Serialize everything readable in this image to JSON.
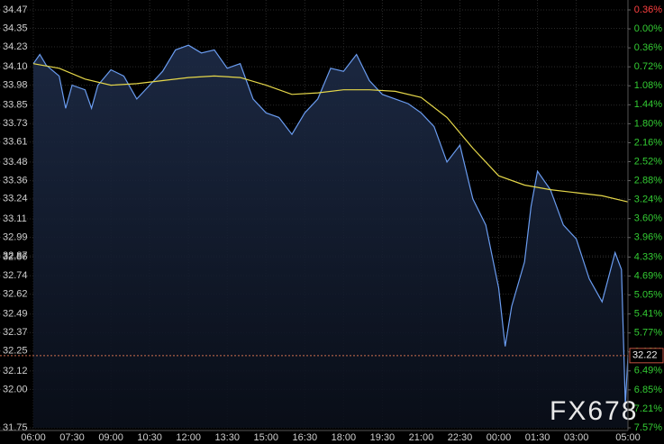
{
  "chart_data": {
    "type": "line",
    "background": "#000000",
    "grid": true,
    "xlim": [
      0,
      23
    ],
    "xticks": [
      {
        "value": 0,
        "label": "06:00"
      },
      {
        "value": 1.5,
        "label": "07:30"
      },
      {
        "value": 3,
        "label": "09:00"
      },
      {
        "value": 4.5,
        "label": "10:30"
      },
      {
        "value": 6,
        "label": "12:00"
      },
      {
        "value": 7.5,
        "label": "13:30"
      },
      {
        "value": 9,
        "label": "15:00"
      },
      {
        "value": 10.5,
        "label": "16:30"
      },
      {
        "value": 12,
        "label": "18:00"
      },
      {
        "value": 13.5,
        "label": "19:30"
      },
      {
        "value": 15,
        "label": "21:00"
      },
      {
        "value": 16.5,
        "label": "22:30"
      },
      {
        "value": 18,
        "label": "00:00"
      },
      {
        "value": 19.5,
        "label": "01:30"
      },
      {
        "value": 21,
        "label": "03:00"
      },
      {
        "value": 23,
        "label": "05:00"
      }
    ],
    "ylim": [
      31.75,
      34.47
    ],
    "yticks": [
      34.47,
      34.35,
      34.23,
      {
        "value": 34.1,
        "label": "34.10"
      },
      33.98,
      33.85,
      33.73,
      33.61,
      33.48,
      33.36,
      33.24,
      33.11,
      32.99,
      32.86,
      32.74,
      32.62,
      32.49,
      32.37,
      32.25,
      32.12,
      {
        "value": 32.0,
        "label": "32.00"
      },
      32.87,
      31.75
    ],
    "y2lim": [
      -7.57,
      0.36
    ],
    "y2ticks": [
      {
        "value": 0.36,
        "label": "0.36%"
      },
      {
        "value": 0.0,
        "label": "0.00%"
      },
      {
        "value": -0.36,
        "label": "0.36%"
      },
      {
        "value": -0.72,
        "label": "0.72%"
      },
      {
        "value": -1.08,
        "label": "1.08%"
      },
      {
        "value": -1.44,
        "label": "1.44%"
      },
      {
        "value": -1.8,
        "label": "1.80%"
      },
      {
        "value": -2.16,
        "label": "2.16%"
      },
      {
        "value": -2.52,
        "label": "2.52%"
      },
      {
        "value": -2.88,
        "label": "2.88%"
      },
      {
        "value": -3.24,
        "label": "3.24%"
      },
      {
        "value": -3.6,
        "label": "3.60%"
      },
      {
        "value": -3.96,
        "label": "3.96%"
      },
      {
        "value": -4.33,
        "label": "4.33%"
      },
      {
        "value": -4.69,
        "label": "4.69%"
      },
      {
        "value": -5.05,
        "label": "5.05%"
      },
      {
        "value": -5.41,
        "label": "5.41%"
      },
      {
        "value": -5.77,
        "label": "5.77%"
      },
      {
        "value": -6.13,
        "label": "6.13%"
      },
      {
        "value": -6.49,
        "label": "6.49%"
      },
      {
        "value": -6.85,
        "label": "6.85%"
      },
      {
        "value": -7.21,
        "label": "7.21%"
      },
      {
        "value": -7.57,
        "label": "7.57%"
      }
    ],
    "y2_up_color": "#ff4040",
    "y2_down_color": "#33cc33",
    "series": [
      {
        "color": "#6a9cf0",
        "area": true,
        "x": [
          0,
          0.25,
          0.5,
          1,
          1.25,
          1.5,
          2,
          2.25,
          2.5,
          3,
          3.5,
          4,
          4.5,
          5,
          5.5,
          6,
          6.5,
          7,
          7.5,
          8,
          8.5,
          9,
          9.5,
          10,
          10.5,
          11,
          11.5,
          12,
          12.5,
          13,
          13.5,
          14,
          14.5,
          15,
          15.5,
          16,
          16.5,
          17,
          17.5,
          18,
          18.25,
          18.5,
          19,
          19.25,
          19.5,
          20,
          20.5,
          21,
          21.5,
          22,
          22.5,
          22.75,
          22.9,
          23
        ],
        "values": [
          34.12,
          34.18,
          34.11,
          34.04,
          33.83,
          33.98,
          33.95,
          33.83,
          33.98,
          34.08,
          34.04,
          33.89,
          33.98,
          34.07,
          34.21,
          34.24,
          34.19,
          34.21,
          34.09,
          34.12,
          33.89,
          33.8,
          33.77,
          33.66,
          33.8,
          33.89,
          34.09,
          34.07,
          34.18,
          34.01,
          33.92,
          33.89,
          33.86,
          33.8,
          33.71,
          33.48,
          33.59,
          33.24,
          33.07,
          32.66,
          32.28,
          32.54,
          32.83,
          33.19,
          33.42,
          33.3,
          33.07,
          32.98,
          32.72,
          32.57,
          32.89,
          32.78,
          31.9,
          32.22
        ]
      },
      {
        "color": "#e6d84a",
        "x": [
          0,
          1,
          2,
          3,
          4,
          5,
          6,
          7,
          8,
          9,
          10,
          11,
          12,
          13,
          14,
          15,
          16,
          17,
          18,
          19,
          20,
          21,
          22,
          23
        ],
        "values": [
          34.12,
          34.09,
          34.02,
          33.98,
          33.99,
          34.01,
          34.03,
          34.04,
          34.03,
          33.98,
          33.92,
          33.93,
          33.95,
          33.95,
          33.94,
          33.9,
          33.77,
          33.57,
          33.39,
          33.33,
          33.3,
          33.28,
          33.26,
          33.22
        ]
      }
    ],
    "last_price": 32.22,
    "watermark": "FX678"
  }
}
